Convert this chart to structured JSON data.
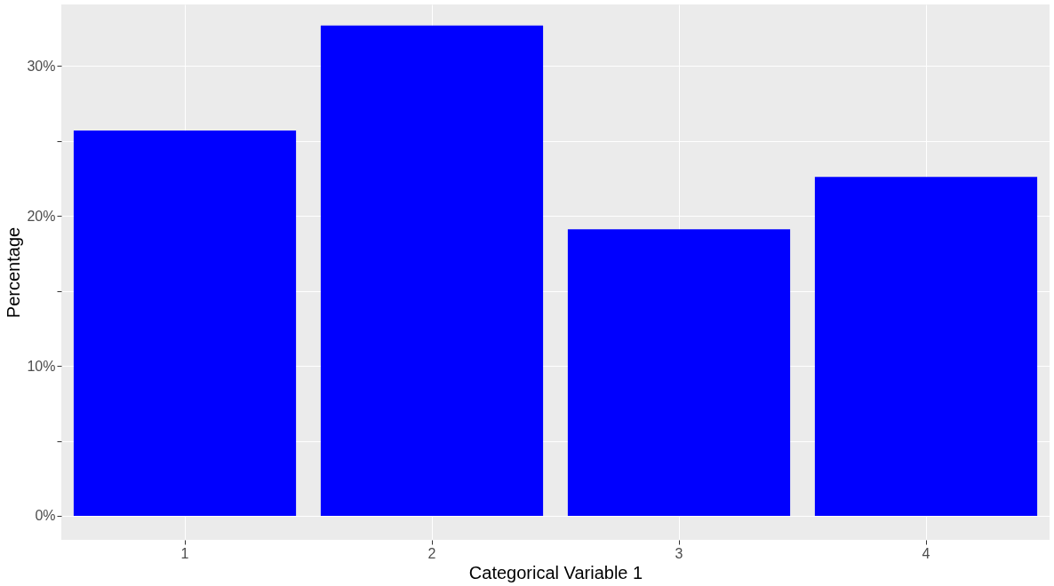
{
  "chart_data": {
    "type": "bar",
    "xlabel": "Categorical Variable 1",
    "ylabel": "Percentage",
    "categories": [
      "1",
      "2",
      "3",
      "4"
    ],
    "values": [
      25.7,
      32.7,
      19.1,
      22.6
    ],
    "color": "#0000ff",
    "ylim": [
      -1.6,
      34.1
    ],
    "yticks": [
      {
        "value": 0,
        "label": "0%"
      },
      {
        "value": 5,
        "label": null
      },
      {
        "value": 10,
        "label": "10%"
      },
      {
        "value": 15,
        "label": null
      },
      {
        "value": 20,
        "label": "20%"
      },
      {
        "value": 25,
        "label": null
      },
      {
        "value": 30,
        "label": "30%"
      }
    ],
    "grid": true
  }
}
